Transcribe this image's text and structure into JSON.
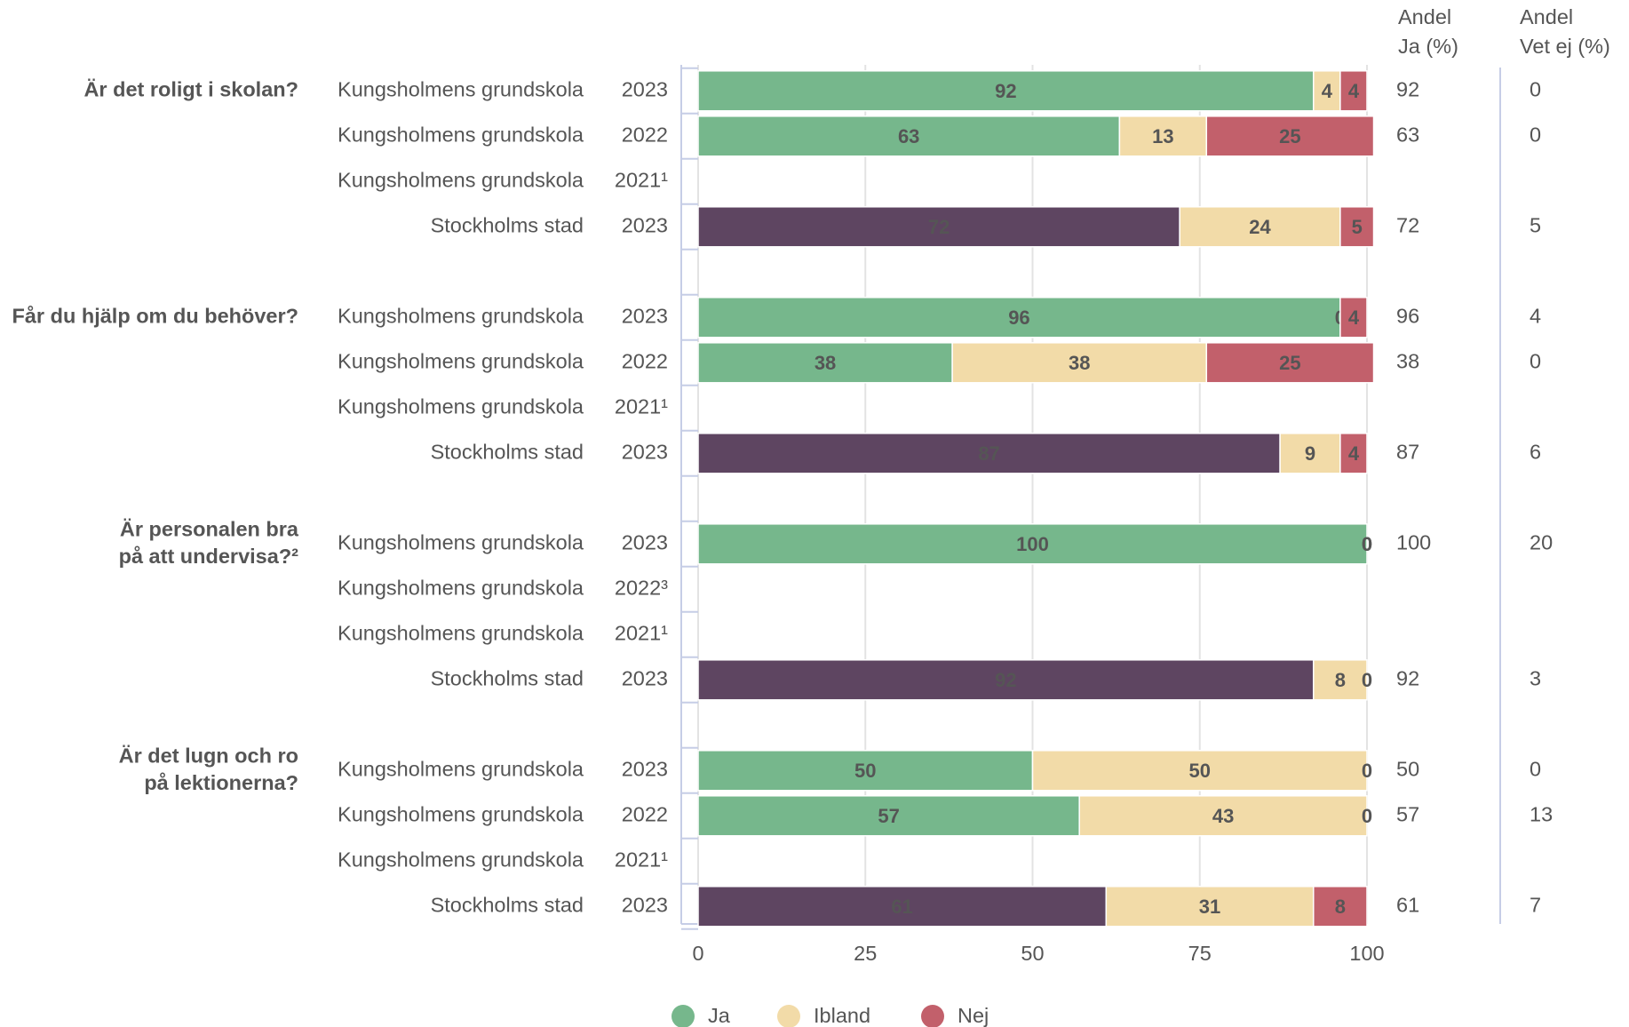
{
  "chart_data": {
    "type": "stacked_bar_horizontal",
    "xlim": [
      0,
      100
    ],
    "xticks": [
      0,
      25,
      50,
      75,
      100
    ],
    "grid": true,
    "legend": "bottom",
    "series": [
      {
        "name": "Ja",
        "color": "#76b78c"
      },
      {
        "name": "Ibland",
        "color": "#f2dba8"
      },
      {
        "name": "Nej",
        "color": "#c2606b"
      }
    ],
    "column_headers": [
      [
        "Andel",
        "Ja (%)"
      ],
      [
        "Andel",
        "Vet ej (%)"
      ]
    ],
    "groups": [
      {
        "question": [
          "Är det roligt i skolan?"
        ],
        "rows": [
          {
            "entity": "Kungsholmens grundskola",
            "year": "2023",
            "ja_color": "#76b78c",
            "values": [
              92,
              4,
              4
            ],
            "andel_ja": 92,
            "andel_vet_ej": 0
          },
          {
            "entity": "Kungsholmens grundskola",
            "year": "2022",
            "ja_color": "#76b78c",
            "values": [
              63,
              13,
              25
            ],
            "andel_ja": 63,
            "andel_vet_ej": 0
          },
          {
            "entity": "Kungsholmens grundskola",
            "year": "2021¹",
            "ja_color": "#76b78c",
            "values": [
              null,
              null,
              null
            ],
            "andel_ja": null,
            "andel_vet_ej": null
          },
          {
            "entity": "Stockholms stad",
            "year": "2023",
            "ja_color": "#5e4561",
            "values": [
              72,
              24,
              5
            ],
            "andel_ja": 72,
            "andel_vet_ej": 5
          }
        ]
      },
      {
        "question": [
          "Får du hjälp om du behöver?"
        ],
        "rows": [
          {
            "entity": "Kungsholmens grundskola",
            "year": "2023",
            "ja_color": "#76b78c",
            "values": [
              96,
              0,
              4
            ],
            "andel_ja": 96,
            "andel_vet_ej": 4
          },
          {
            "entity": "Kungsholmens grundskola",
            "year": "2022",
            "ja_color": "#76b78c",
            "values": [
              38,
              38,
              25
            ],
            "andel_ja": 38,
            "andel_vet_ej": 0
          },
          {
            "entity": "Kungsholmens grundskola",
            "year": "2021¹",
            "ja_color": "#76b78c",
            "values": [
              null,
              null,
              null
            ],
            "andel_ja": null,
            "andel_vet_ej": null
          },
          {
            "entity": "Stockholms stad",
            "year": "2023",
            "ja_color": "#5e4561",
            "values": [
              87,
              9,
              4
            ],
            "andel_ja": 87,
            "andel_vet_ej": 6
          }
        ]
      },
      {
        "question": [
          "Är personalen bra",
          "på att undervisa?²"
        ],
        "rows": [
          {
            "entity": "Kungsholmens grundskola",
            "year": "2023",
            "ja_color": "#76b78c",
            "values": [
              100,
              0,
              0
            ],
            "andel_ja": 100,
            "andel_vet_ej": 20
          },
          {
            "entity": "Kungsholmens grundskola",
            "year": "2022³",
            "ja_color": "#76b78c",
            "values": [
              null,
              null,
              null
            ],
            "andel_ja": null,
            "andel_vet_ej": null
          },
          {
            "entity": "Kungsholmens grundskola",
            "year": "2021¹",
            "ja_color": "#76b78c",
            "values": [
              null,
              null,
              null
            ],
            "andel_ja": null,
            "andel_vet_ej": null
          },
          {
            "entity": "Stockholms stad",
            "year": "2023",
            "ja_color": "#5e4561",
            "values": [
              92,
              8,
              0
            ],
            "andel_ja": 92,
            "andel_vet_ej": 3
          }
        ]
      },
      {
        "question": [
          "Är det lugn och ro",
          "på lektionerna?"
        ],
        "rows": [
          {
            "entity": "Kungsholmens grundskola",
            "year": "2023",
            "ja_color": "#76b78c",
            "values": [
              50,
              50,
              0
            ],
            "andel_ja": 50,
            "andel_vet_ej": 0
          },
          {
            "entity": "Kungsholmens grundskola",
            "year": "2022",
            "ja_color": "#76b78c",
            "values": [
              57,
              43,
              0
            ],
            "andel_ja": 57,
            "andel_vet_ej": 13
          },
          {
            "entity": "Kungsholmens grundskola",
            "year": "2021¹",
            "ja_color": "#76b78c",
            "values": [
              null,
              null,
              null
            ],
            "andel_ja": null,
            "andel_vet_ej": null
          },
          {
            "entity": "Stockholms stad",
            "year": "2023",
            "ja_color": "#5e4561",
            "values": [
              61,
              31,
              8
            ],
            "andel_ja": 61,
            "andel_vet_ej": 7
          }
        ]
      }
    ]
  }
}
